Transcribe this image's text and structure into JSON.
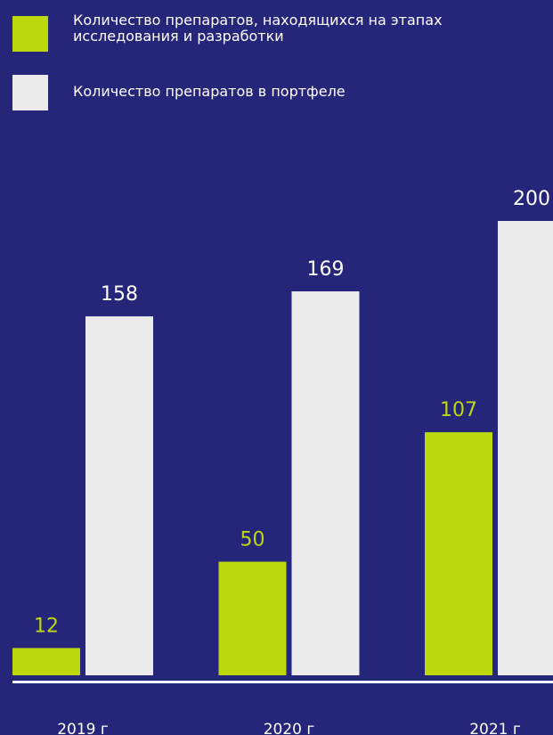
{
  "chart_data": {
    "type": "bar",
    "categories": [
      "2019 г",
      "2020 г",
      "2021 г"
    ],
    "series": [
      {
        "name": "Количество препаратов, находящихся на этапах\nисследования и разработки",
        "color": "#bcd90f",
        "values": [
          12,
          50,
          107
        ]
      },
      {
        "name": "Количество препаратов в портфеле",
        "color": "#ebebeb",
        "values": [
          158,
          169,
          200
        ]
      }
    ],
    "ylim": [
      0,
      200
    ]
  }
}
